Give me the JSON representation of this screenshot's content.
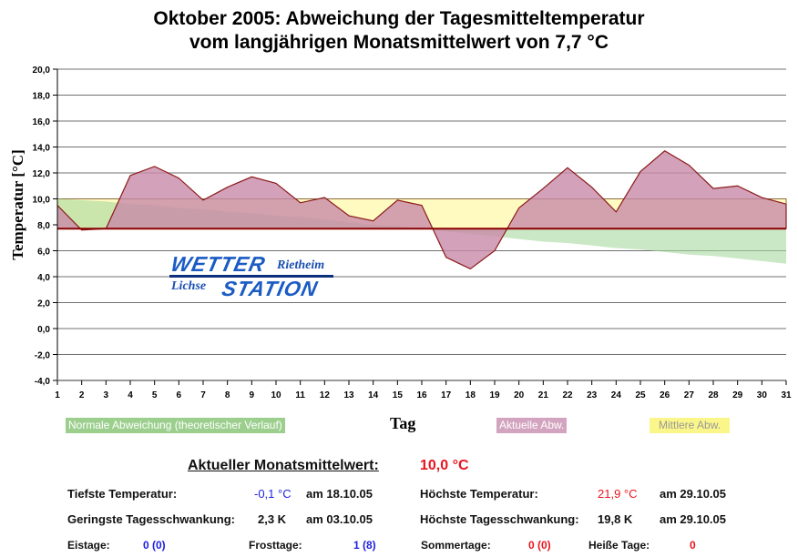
{
  "title": {
    "line1": "Oktober 2005: Abweichung der Tagesmitteltemperatur",
    "line2": "vom langjährigen Monatsmittelwert von 7,7 °C"
  },
  "logo": {
    "word1": "WETTER",
    "word2": "STATION",
    "place1": "Rietheim",
    "place2": "Lichse"
  },
  "colors": {
    "actual_fill": "#c88aa8",
    "actual_line": "#8b1a1a",
    "mean_fill": "#fffbc0",
    "normal_fill": "#a8d8a0",
    "baseline": "#8b0000",
    "grid": "#808080"
  },
  "chart_data": {
    "type": "area",
    "title": "Oktober 2005: Abweichung der Tagesmitteltemperatur vom langjährigen Monatsmittelwert von 7,7 °C",
    "xlabel": "Tag",
    "ylabel": "Temperatur [°C]",
    "ylim": [
      -4.0,
      20.0
    ],
    "y_ticks": [
      "20,0",
      "18,0",
      "16,0",
      "14,0",
      "12,0",
      "10,0",
      "8,0",
      "6,0",
      "4,0",
      "2,0",
      "0,0",
      "-2,0",
      "-4,0"
    ],
    "x": [
      1,
      2,
      3,
      4,
      5,
      6,
      7,
      8,
      9,
      10,
      11,
      12,
      13,
      14,
      15,
      16,
      17,
      18,
      19,
      20,
      21,
      22,
      23,
      24,
      25,
      26,
      27,
      28,
      29,
      30,
      31
    ],
    "baseline": 7.7,
    "grid": true,
    "series": [
      {
        "name": "Aktuelle Abw.",
        "values": [
          9.5,
          7.6,
          7.7,
          11.8,
          12.5,
          11.6,
          9.9,
          10.9,
          11.7,
          11.2,
          9.7,
          10.1,
          8.7,
          8.3,
          9.9,
          9.5,
          5.5,
          4.6,
          6.0,
          9.3,
          10.8,
          12.4,
          10.9,
          9.0,
          12.1,
          13.7,
          12.6,
          10.8,
          11.0,
          10.1,
          9.6
        ]
      },
      {
        "name": "Mittlere Abw.",
        "values": [
          10.0,
          10.0,
          10.0,
          10.0,
          10.0,
          10.0,
          10.0,
          10.0,
          10.0,
          10.0,
          10.0,
          10.0,
          10.0,
          10.0,
          10.0,
          10.0,
          10.0,
          10.0,
          10.0,
          10.0,
          10.0,
          10.0,
          10.0,
          10.0,
          10.0,
          10.0,
          10.0,
          10.0,
          10.0,
          10.0,
          10.0
        ]
      },
      {
        "name": "Normale Abweichung (theoretischer Verlauf)",
        "values": [
          10.0,
          9.9,
          9.8,
          9.6,
          9.5,
          9.3,
          9.2,
          9.0,
          8.9,
          8.7,
          8.6,
          8.4,
          8.2,
          8.0,
          7.9,
          7.7,
          7.5,
          7.3,
          7.1,
          6.9,
          6.7,
          6.6,
          6.4,
          6.2,
          6.1,
          5.9,
          5.7,
          5.6,
          5.4,
          5.2,
          5.0
        ]
      }
    ],
    "legend": [
      "Normale Abweichung (theoretischer Verlauf)",
      "Aktuelle Abw.",
      "Mittlere Abw."
    ],
    "legend_position": "bottom"
  },
  "stats": {
    "monthly_mean_label": "Aktueller Monatsmittelwert:",
    "monthly_mean_value": "10,0 °C",
    "min_temp_label": "Tiefste Temperatur:",
    "min_temp_value": "-0,1 °C",
    "min_temp_date": "am 18.10.05",
    "max_temp_label": "Höchste Temperatur:",
    "max_temp_value": "21,9 °C",
    "max_temp_date": "am 29.10.05",
    "min_range_label": "Geringste Tagesschwankung:",
    "min_range_value": "2,3 K",
    "min_range_date": "am 03.10.05",
    "max_range_label": "Höchste Tagesschwankung:",
    "max_range_value": "19,8 K",
    "max_range_date": "am 29.10.05",
    "ice_days_label": "Eistage:",
    "ice_days_value": "0 (0)",
    "frost_days_label": "Frosttage:",
    "frost_days_value": "1 (8)",
    "summer_days_label": "Sommertage:",
    "summer_days_value": "0 (0)",
    "hot_days_label": "Heiße Tage:",
    "hot_days_value": "0"
  }
}
